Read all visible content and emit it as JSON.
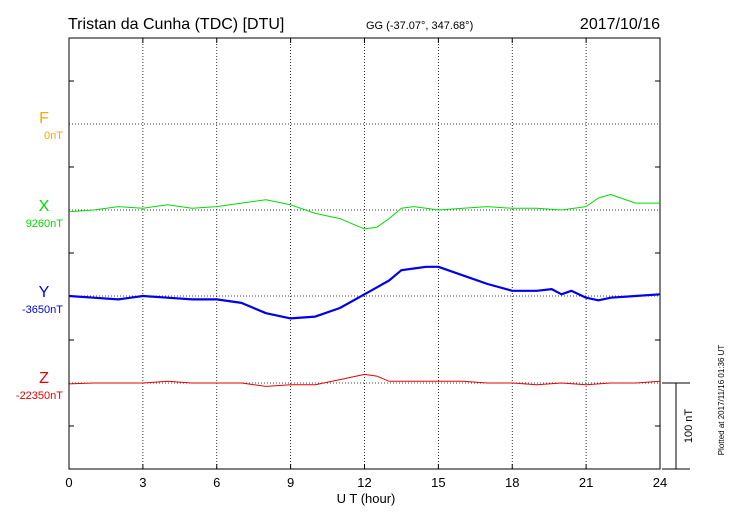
{
  "header": {
    "station": "Tristan da Cunha (TDC)  [DTU]",
    "coords": "GG (-37.07°, 347.68°)",
    "date": "2017/10/16"
  },
  "footer": {
    "plotted": "Plotted at 2017/11/16 01:36 UT"
  },
  "chart_data": {
    "type": "line",
    "xlabel": "U T (hour)",
    "x_ticks": [
      0,
      3,
      6,
      9,
      12,
      15,
      18,
      21,
      24
    ],
    "xlim": [
      0,
      24
    ],
    "scale_bar": {
      "label": "100 nT",
      "value": 100
    },
    "grid": true,
    "series": [
      {
        "name": "F",
        "baseline_label": "0nT",
        "color": "#ffa500",
        "baseline_nT": 0,
        "stroke": 1.0,
        "points": []
      },
      {
        "name": "X",
        "baseline_label": "9260nT",
        "color": "#00dd00",
        "baseline_nT": 9260,
        "stroke": 1.0,
        "points": [
          [
            0,
            9258
          ],
          [
            1,
            9260
          ],
          [
            2,
            9264
          ],
          [
            3,
            9262
          ],
          [
            4,
            9266
          ],
          [
            5,
            9262
          ],
          [
            6,
            9264
          ],
          [
            7,
            9268
          ],
          [
            8,
            9272
          ],
          [
            9,
            9266
          ],
          [
            10,
            9256
          ],
          [
            11,
            9250
          ],
          [
            11.5,
            9244
          ],
          [
            12,
            9238
          ],
          [
            12.5,
            9240
          ],
          [
            13,
            9250
          ],
          [
            13.5,
            9262
          ],
          [
            14,
            9264
          ],
          [
            14.5,
            9262
          ],
          [
            15,
            9260
          ],
          [
            16,
            9262
          ],
          [
            17,
            9264
          ],
          [
            18,
            9262
          ],
          [
            19,
            9262
          ],
          [
            20,
            9260
          ],
          [
            21,
            9264
          ],
          [
            21.5,
            9274
          ],
          [
            22,
            9278
          ],
          [
            23,
            9268
          ],
          [
            24,
            9268
          ]
        ]
      },
      {
        "name": "Y",
        "baseline_label": "-3650nT",
        "color": "#0000ee",
        "baseline_nT": -3650,
        "stroke": 2.2,
        "points": [
          [
            0,
            -3650
          ],
          [
            1,
            -3652
          ],
          [
            2,
            -3654
          ],
          [
            3,
            -3650
          ],
          [
            4,
            -3652
          ],
          [
            5,
            -3654
          ],
          [
            6,
            -3654
          ],
          [
            7,
            -3658
          ],
          [
            8,
            -3670
          ],
          [
            9,
            -3676
          ],
          [
            10,
            -3674
          ],
          [
            11,
            -3664
          ],
          [
            12,
            -3648
          ],
          [
            13,
            -3632
          ],
          [
            13.5,
            -3620
          ],
          [
            14,
            -3618
          ],
          [
            14.5,
            -3616
          ],
          [
            15,
            -3616
          ],
          [
            16,
            -3626
          ],
          [
            17,
            -3636
          ],
          [
            18,
            -3644
          ],
          [
            19,
            -3644
          ],
          [
            19.6,
            -3642
          ],
          [
            20,
            -3648
          ],
          [
            20.4,
            -3644
          ],
          [
            21,
            -3652
          ],
          [
            21.5,
            -3655
          ],
          [
            22,
            -3652
          ],
          [
            23,
            -3650
          ],
          [
            24,
            -3648
          ]
        ]
      },
      {
        "name": "Z",
        "baseline_label": "-22350nT",
        "color": "#ee0000",
        "baseline_nT": -22350,
        "stroke": 1.0,
        "points": [
          [
            0,
            -22351
          ],
          [
            1,
            -22350
          ],
          [
            2,
            -22350
          ],
          [
            3,
            -22350
          ],
          [
            4,
            -22348
          ],
          [
            5,
            -22350
          ],
          [
            6,
            -22350
          ],
          [
            7,
            -22350
          ],
          [
            8,
            -22354
          ],
          [
            9,
            -22352
          ],
          [
            10,
            -22352
          ],
          [
            11,
            -22346
          ],
          [
            12,
            -22340
          ],
          [
            12.5,
            -22342
          ],
          [
            13,
            -22348
          ],
          [
            14,
            -22348
          ],
          [
            15,
            -22348
          ],
          [
            16,
            -22348
          ],
          [
            17,
            -22350
          ],
          [
            18,
            -22350
          ],
          [
            19,
            -22352
          ],
          [
            20,
            -22350
          ],
          [
            21,
            -22352
          ],
          [
            22,
            -22350
          ],
          [
            23,
            -22350
          ],
          [
            24,
            -22348
          ]
        ]
      }
    ]
  }
}
